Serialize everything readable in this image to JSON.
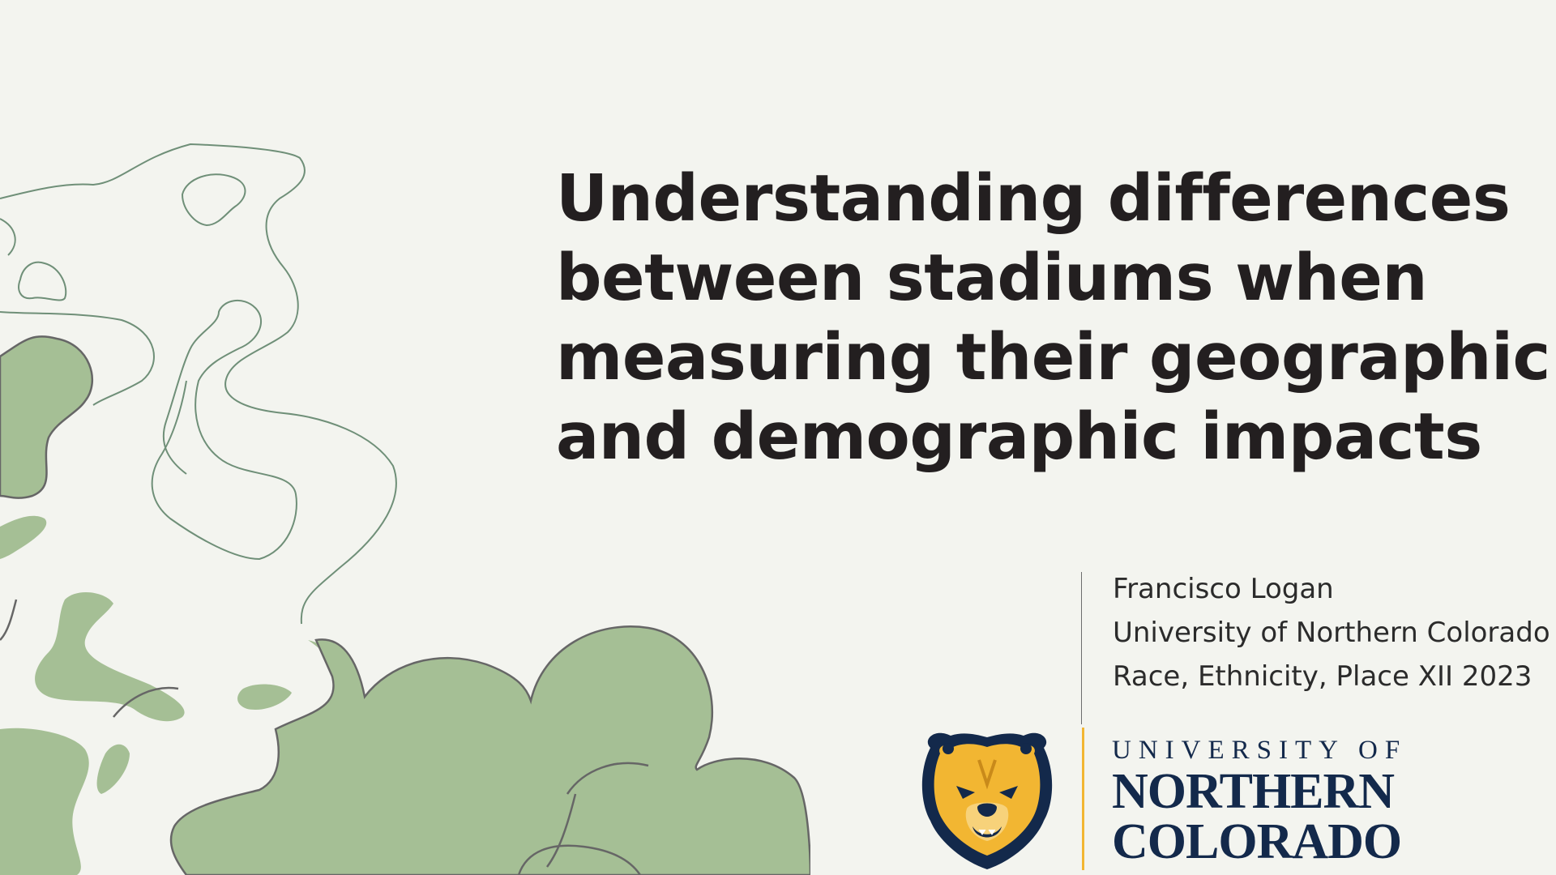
{
  "title": {
    "lines": [
      "Understanding differences",
      "between stadiums when",
      "measuring their geographic",
      "and demographic impacts"
    ]
  },
  "presenter": {
    "name": "Francisco Logan",
    "affiliation": "University of Northern Colorado",
    "event": "Race, Ethnicity, Place XII 2023"
  },
  "logo": {
    "line1": "UNIVERSITY OF",
    "line2": "NORTHERN",
    "line3": "COLORADO",
    "icon": "bear-mascot-icon"
  },
  "colors": {
    "background": "#f3f4ef",
    "title": "#231f20",
    "accent_green": "#a5bf95",
    "contour_line": "#6f8f78",
    "unc_navy": "#13294b",
    "unc_gold": "#f2b632"
  }
}
